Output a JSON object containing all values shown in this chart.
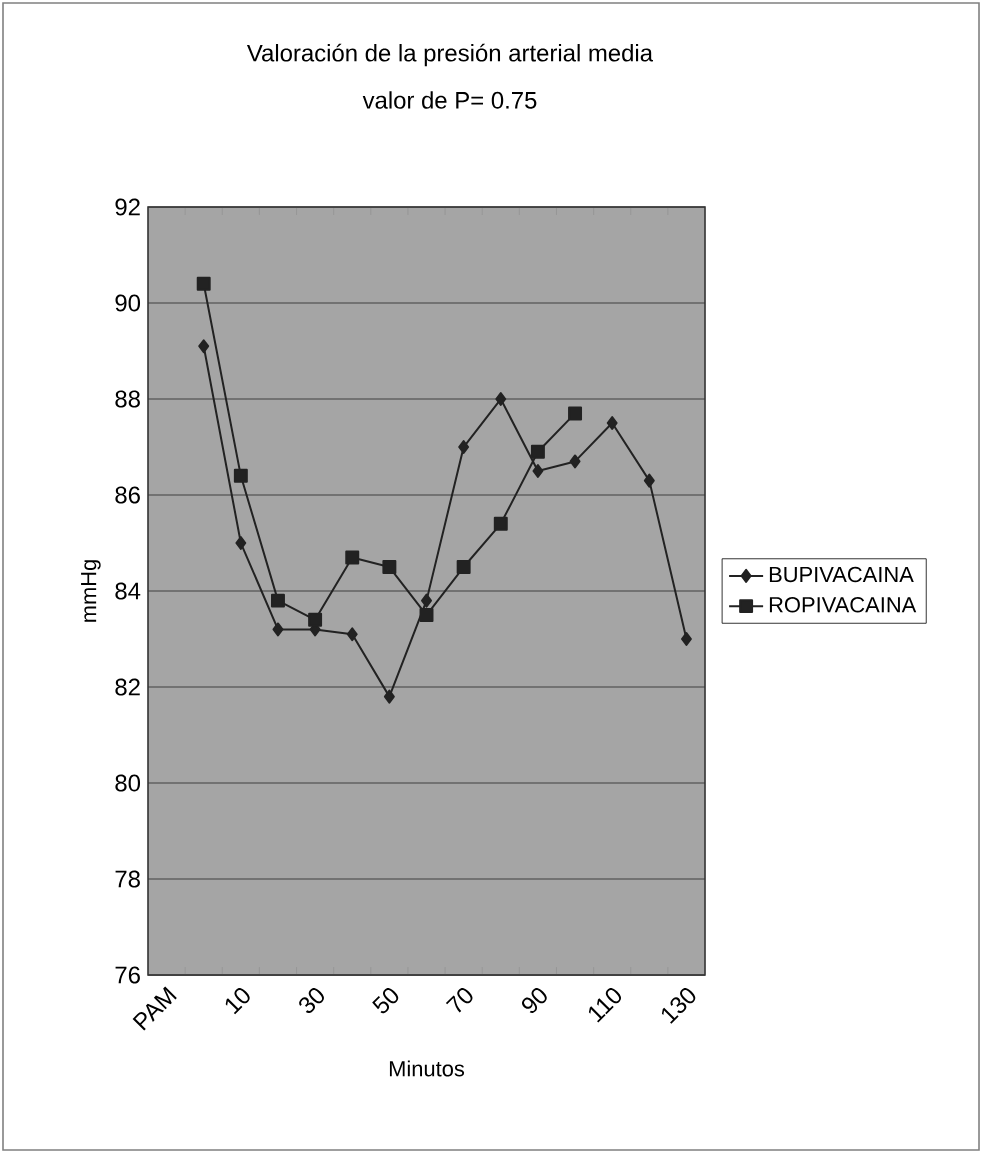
{
  "chart_data": {
    "type": "line",
    "title": "Valoración de la presión arterial media",
    "subtitle": "valor de P= 0.75",
    "xlabel": "Minutos",
    "ylabel": "mmHg",
    "categories": [
      "PAM",
      null,
      "10",
      null,
      "30",
      null,
      "50",
      null,
      "70",
      null,
      "90",
      null,
      "110",
      null,
      "130"
    ],
    "series": [
      {
        "name": "BUPIVACAINA",
        "color": "#222222",
        "marker": "diamond",
        "values": [
          null,
          89.1,
          85.0,
          83.2,
          83.2,
          83.1,
          81.8,
          83.8,
          87.0,
          88.0,
          86.5,
          86.7,
          87.5,
          86.3,
          83.0
        ]
      },
      {
        "name": "ROPIVACAINA",
        "color": "#222222",
        "marker": "square",
        "values": [
          null,
          90.4,
          86.4,
          83.8,
          83.4,
          84.7,
          84.5,
          83.5,
          84.5,
          85.4,
          86.9,
          87.7,
          null,
          null,
          null
        ]
      }
    ],
    "ylim": [
      76,
      92
    ],
    "yticks": [
      76,
      78,
      80,
      82,
      84,
      86,
      88,
      90,
      92
    ],
    "grid": "y",
    "legend": "right",
    "line_style": "solid"
  }
}
